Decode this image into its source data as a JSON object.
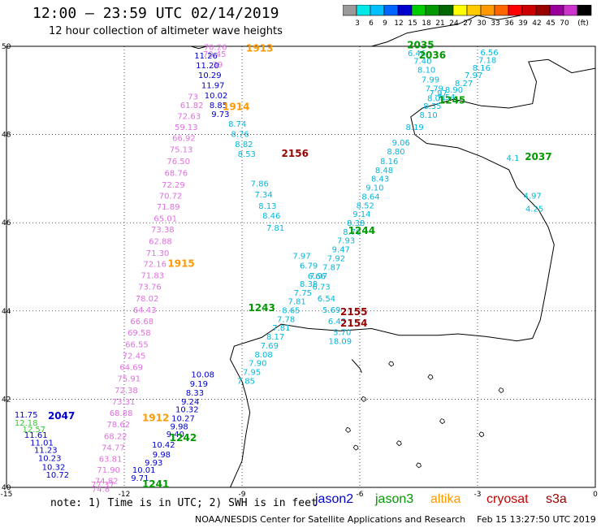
{
  "header": {
    "title": "12:00 – 23:59 UTC 02/14/2019",
    "subtitle": "12 hour collection of altimeter wave heights"
  },
  "colorbar": {
    "unit": "(ft)",
    "ticks": [
      "3",
      "6",
      "9",
      "12",
      "15",
      "18",
      "21",
      "24",
      "27",
      "30",
      "33",
      "36",
      "39",
      "42",
      "45",
      "70"
    ],
    "colors": [
      "#9a9a9a",
      "#00e8e8",
      "#00c0ff",
      "#0066ff",
      "#0000cc",
      "#00cc00",
      "#009900",
      "#006600",
      "#ffff00",
      "#ffcc00",
      "#ff9900",
      "#ff6600",
      "#ff0000",
      "#cc0000",
      "#990000",
      "#990099",
      "#cc33cc",
      "#000000"
    ]
  },
  "footer": {
    "note": "note: 1) Time is in UTC; 2) SWH is in feet",
    "credit": "NOAA/NESDIS Center for Satellite Applications and Research    Feb 15 13:27:50 UTC 2019",
    "legend": [
      {
        "name": "jason2",
        "color": "#0000cc"
      },
      {
        "name": "jason3",
        "color": "#009900"
      },
      {
        "name": "altika",
        "color": "#ff9900"
      },
      {
        "name": "cryosat",
        "color": "#cc0000"
      },
      {
        "name": "s3a",
        "color": "#990000"
      }
    ]
  },
  "chart_data": {
    "type": "scatter",
    "xlim": [
      -15,
      0
    ],
    "ylim": [
      40,
      50
    ],
    "x_ticks": [
      -15,
      -12,
      -9,
      -6,
      -3,
      0
    ],
    "x_tick_labels": [
      "-15",
      "-12",
      "-9",
      "-6",
      "-3",
      "0"
    ],
    "y_ticks": [
      40,
      42,
      44,
      46,
      48,
      50
    ],
    "y_tick_labels": [
      "40",
      "42",
      "44",
      "46",
      "48",
      "50"
    ],
    "grid": true,
    "series": [
      {
        "name": "altika pass 1913/1915",
        "color": "#e070e0",
        "points": [
          {
            "x": -9.68,
            "y": 49.92,
            "v": "70.26"
          },
          {
            "x": -9.7,
            "y": 49.76,
            "v": "70.45"
          },
          {
            "x": -9.62,
            "y": 49.52,
            "v": "39"
          },
          {
            "x": -10.25,
            "y": 48.79,
            "v": "73"
          },
          {
            "x": -10.28,
            "y": 48.6,
            "v": "61.82"
          },
          {
            "x": -10.35,
            "y": 48.35,
            "v": "72.63"
          },
          {
            "x": -10.42,
            "y": 48.1,
            "v": "59.13"
          },
          {
            "x": -10.48,
            "y": 47.85,
            "v": "66.92"
          },
          {
            "x": -10.55,
            "y": 47.6,
            "v": "75.13"
          },
          {
            "x": -10.62,
            "y": 47.33,
            "v": "76.50"
          },
          {
            "x": -10.68,
            "y": 47.06,
            "v": "68.76"
          },
          {
            "x": -10.75,
            "y": 46.8,
            "v": "72.29"
          },
          {
            "x": -10.82,
            "y": 46.55,
            "v": "70.72"
          },
          {
            "x": -10.88,
            "y": 46.3,
            "v": "71.89"
          },
          {
            "x": -10.95,
            "y": 46.03,
            "v": "65.01"
          },
          {
            "x": -11.02,
            "y": 45.78,
            "v": "73.38"
          },
          {
            "x": -11.08,
            "y": 45.52,
            "v": "62.88"
          },
          {
            "x": -11.15,
            "y": 45.25,
            "v": "71.30"
          },
          {
            "x": -11.22,
            "y": 45.0,
            "v": "72.16"
          },
          {
            "x": -11.28,
            "y": 44.74,
            "v": "71.83"
          },
          {
            "x": -11.35,
            "y": 44.48,
            "v": "73.76"
          },
          {
            "x": -11.42,
            "y": 44.22,
            "v": "78.02"
          },
          {
            "x": -11.48,
            "y": 43.96,
            "v": "64.43"
          },
          {
            "x": -11.55,
            "y": 43.7,
            "v": "66.68"
          },
          {
            "x": -11.62,
            "y": 43.44,
            "v": "69.58"
          },
          {
            "x": -11.68,
            "y": 43.18,
            "v": "66.55"
          },
          {
            "x": -11.75,
            "y": 42.92,
            "v": "72.45"
          },
          {
            "x": -11.82,
            "y": 42.66,
            "v": "64.69"
          },
          {
            "x": -11.88,
            "y": 42.4,
            "v": "75.91"
          },
          {
            "x": -11.95,
            "y": 42.14,
            "v": "72.38"
          },
          {
            "x": -12.02,
            "y": 41.88,
            "v": "73.31"
          },
          {
            "x": -12.08,
            "y": 41.62,
            "v": "68.88"
          },
          {
            "x": -12.15,
            "y": 41.36,
            "v": "78.62"
          },
          {
            "x": -12.22,
            "y": 41.1,
            "v": "68.22"
          },
          {
            "x": -12.28,
            "y": 40.84,
            "v": "74.77"
          },
          {
            "x": -12.35,
            "y": 40.58,
            "v": "63.81"
          },
          {
            "x": -12.4,
            "y": 40.33,
            "v": "71.90"
          },
          {
            "x": -12.45,
            "y": 40.08,
            "v": "74.82"
          },
          {
            "x": -12.55,
            "y": 40.0,
            "v": "77.37"
          },
          {
            "x": -12.6,
            "y": 39.9,
            "v": "74.8"
          }
        ]
      },
      {
        "name": "jason2 pass 2047",
        "color": "#0000cc",
        "points": [
          {
            "x": -9.92,
            "y": 49.72,
            "v": "11.26"
          },
          {
            "x": -9.88,
            "y": 49.5,
            "v": "11.20"
          },
          {
            "x": -9.82,
            "y": 49.28,
            "v": "10.29"
          },
          {
            "x": -9.74,
            "y": 49.05,
            "v": "11.97"
          },
          {
            "x": -9.66,
            "y": 48.82,
            "v": "10.02"
          },
          {
            "x": -9.6,
            "y": 48.6,
            "v": "8.85"
          },
          {
            "x": -9.55,
            "y": 48.4,
            "v": "9.73"
          },
          {
            "x": -14.5,
            "y": 41.58,
            "v": "11.75"
          },
          {
            "x": -14.25,
            "y": 41.12,
            "v": "11.61"
          },
          {
            "x": -14.1,
            "y": 40.95,
            "v": "11.01"
          },
          {
            "x": -14.0,
            "y": 40.78,
            "v": "11.23"
          },
          {
            "x": -13.9,
            "y": 40.6,
            "v": "10.23"
          },
          {
            "x": -13.8,
            "y": 40.4,
            "v": "10.32"
          },
          {
            "x": -13.7,
            "y": 40.22,
            "v": "10.72"
          },
          {
            "x": -11.25,
            "y": 40.5,
            "v": "9.93"
          },
          {
            "x": -11.5,
            "y": 40.33,
            "v": "10.01"
          },
          {
            "x": -11.6,
            "y": 40.15,
            "v": "9.71"
          },
          {
            "x": -11.05,
            "y": 40.68,
            "v": "9.98"
          },
          {
            "x": -11.0,
            "y": 40.9,
            "v": "10.42"
          },
          {
            "x": -10.7,
            "y": 41.14,
            "v": "9.40"
          },
          {
            "x": -10.6,
            "y": 41.32,
            "v": "9.98"
          },
          {
            "x": -10.5,
            "y": 41.5,
            "v": "10.27"
          },
          {
            "x": -10.4,
            "y": 41.7,
            "v": "10.32"
          },
          {
            "x": -10.32,
            "y": 41.88,
            "v": "9.24"
          },
          {
            "x": -10.2,
            "y": 42.08,
            "v": "8.33"
          },
          {
            "x": -10.1,
            "y": 42.28,
            "v": "9.19"
          },
          {
            "x": -10.0,
            "y": 42.5,
            "v": "10.08"
          }
        ]
      },
      {
        "name": "jason3 pass 1244/1245",
        "color": "#00b8e0",
        "points": [
          {
            "x": -4.55,
            "y": 49.78,
            "v": "6.46"
          },
          {
            "x": -4.4,
            "y": 49.6,
            "v": "7.40"
          },
          {
            "x": -4.3,
            "y": 49.4,
            "v": "8.10"
          },
          {
            "x": -4.2,
            "y": 49.18,
            "v": "7.99"
          },
          {
            "x": -4.1,
            "y": 48.98,
            "v": "7.79"
          },
          {
            "x": -4.0,
            "y": 48.88,
            "v": "7.97"
          },
          {
            "x": -4.05,
            "y": 48.76,
            "v": "8.08"
          },
          {
            "x": -4.15,
            "y": 48.58,
            "v": "8.35"
          },
          {
            "x": -4.25,
            "y": 48.38,
            "v": "8.10"
          },
          {
            "x": -4.6,
            "y": 48.1,
            "v": "8.19"
          },
          {
            "x": -4.95,
            "y": 47.75,
            "v": "9.06"
          },
          {
            "x": -5.08,
            "y": 47.55,
            "v": "8.80"
          },
          {
            "x": -5.25,
            "y": 47.33,
            "v": "8.16"
          },
          {
            "x": -5.38,
            "y": 47.13,
            "v": "8.48"
          },
          {
            "x": -5.48,
            "y": 46.93,
            "v": "8.43"
          },
          {
            "x": -5.62,
            "y": 46.73,
            "v": "9.10"
          },
          {
            "x": -5.72,
            "y": 46.53,
            "v": "8.64"
          },
          {
            "x": -5.86,
            "y": 46.33,
            "v": "8.52"
          },
          {
            "x": -5.95,
            "y": 46.13,
            "v": "9.14"
          },
          {
            "x": -6.1,
            "y": 45.93,
            "v": "8.38"
          },
          {
            "x": -6.2,
            "y": 45.73,
            "v": "8.70"
          },
          {
            "x": -6.35,
            "y": 45.53,
            "v": "7.93"
          },
          {
            "x": -6.48,
            "y": 45.33,
            "v": "9.47"
          },
          {
            "x": -6.6,
            "y": 45.13,
            "v": "7.92"
          },
          {
            "x": -6.72,
            "y": 44.93,
            "v": "7.87"
          },
          {
            "x": -7.05,
            "y": 44.73,
            "v": "7.97"
          },
          {
            "x": -7.3,
            "y": 44.55,
            "v": "8.38"
          },
          {
            "x": -7.45,
            "y": 44.35,
            "v": "7.75"
          },
          {
            "x": -7.6,
            "y": 44.15,
            "v": "7.81"
          },
          {
            "x": -7.75,
            "y": 43.95,
            "v": "8.65"
          },
          {
            "x": -7.88,
            "y": 43.75,
            "v": "7.78"
          },
          {
            "x": -8.0,
            "y": 43.55,
            "v": "7.81"
          },
          {
            "x": -8.15,
            "y": 43.35,
            "v": "8.17"
          },
          {
            "x": -8.3,
            "y": 43.15,
            "v": "7.69"
          },
          {
            "x": -8.45,
            "y": 42.95,
            "v": "8.08"
          },
          {
            "x": -8.6,
            "y": 42.75,
            "v": "7.90"
          },
          {
            "x": -8.75,
            "y": 42.55,
            "v": "7.95"
          },
          {
            "x": -8.9,
            "y": 42.35,
            "v": "7.85"
          },
          {
            "x": -2.7,
            "y": 49.8,
            "v": "6.56"
          },
          {
            "x": -2.75,
            "y": 49.62,
            "v": "7.18"
          },
          {
            "x": -2.9,
            "y": 49.45,
            "v": "8.16"
          },
          {
            "x": -3.1,
            "y": 49.28,
            "v": "7.97"
          },
          {
            "x": -3.35,
            "y": 49.1,
            "v": "8.27"
          },
          {
            "x": -3.6,
            "y": 48.95,
            "v": "8.90"
          },
          {
            "x": -3.8,
            "y": 48.78,
            "v": "7.54"
          },
          {
            "x": -1.6,
            "y": 46.55,
            "v": "4.97"
          },
          {
            "x": -1.55,
            "y": 46.25,
            "v": "4.25"
          },
          {
            "x": -2.1,
            "y": 47.4,
            "v": "4.1"
          }
        ]
      },
      {
        "name": "jason2 pass 2156 descending",
        "color": "#00b8e0",
        "points": [
          {
            "x": -9.12,
            "y": 48.18,
            "v": "8.74"
          },
          {
            "x": -9.05,
            "y": 47.95,
            "v": "8.76"
          },
          {
            "x": -8.95,
            "y": 47.72,
            "v": "8.82"
          },
          {
            "x": -8.88,
            "y": 47.5,
            "v": "8.53"
          },
          {
            "x": -8.55,
            "y": 46.82,
            "v": "7.86"
          },
          {
            "x": -8.45,
            "y": 46.57,
            "v": "7.34"
          },
          {
            "x": -8.35,
            "y": 46.32,
            "v": "8.13"
          },
          {
            "x": -8.25,
            "y": 46.1,
            "v": "8.46"
          },
          {
            "x": -8.15,
            "y": 45.82,
            "v": "7.81"
          },
          {
            "x": -7.48,
            "y": 45.18,
            "v": "7.97"
          },
          {
            "x": -7.3,
            "y": 44.96,
            "v": "6.79"
          },
          {
            "x": -7.1,
            "y": 44.72,
            "v": "6.66"
          },
          {
            "x": -6.98,
            "y": 44.48,
            "v": "6.73"
          },
          {
            "x": -6.85,
            "y": 44.22,
            "v": "6.54"
          },
          {
            "x": -6.72,
            "y": 43.96,
            "v": "5.69"
          },
          {
            "x": -6.58,
            "y": 43.7,
            "v": "6.43"
          },
          {
            "x": -6.45,
            "y": 43.45,
            "v": "5.70"
          },
          {
            "x": -6.5,
            "y": 43.25,
            "v": "18.09"
          }
        ]
      }
    ],
    "pass_labels": [
      {
        "text": "1913",
        "x": -8.55,
        "y": 49.88,
        "color": "#ff9900"
      },
      {
        "text": "1914",
        "x": -9.15,
        "y": 48.55,
        "color": "#ff9900"
      },
      {
        "text": "2156",
        "x": -7.65,
        "y": 47.5,
        "color": "#990000"
      },
      {
        "text": "1244",
        "x": -5.95,
        "y": 45.75,
        "color": "#009900"
      },
      {
        "text": "1915",
        "x": -10.55,
        "y": 45.0,
        "color": "#ff9900"
      },
      {
        "text": "1243",
        "x": -8.5,
        "y": 44.0,
        "color": "#009900"
      },
      {
        "text": "2155",
        "x": -6.15,
        "y": 43.9,
        "color": "#990000"
      },
      {
        "text": "2154",
        "x": -6.15,
        "y": 43.65,
        "color": "#990000"
      },
      {
        "text": "2035",
        "x": -4.45,
        "y": 49.95,
        "color": "#009900"
      },
      {
        "text": "2036",
        "x": -4.15,
        "y": 49.72,
        "color": "#009900"
      },
      {
        "text": "1245",
        "x": -3.65,
        "y": 48.7,
        "color": "#009900"
      },
      {
        "text": "2037",
        "x": -1.45,
        "y": 47.42,
        "color": "#009900"
      },
      {
        "text": "2047",
        "x": -13.6,
        "y": 41.55,
        "color": "#0000cc"
      },
      {
        "text": "1912",
        "x": -11.2,
        "y": 41.5,
        "color": "#ff9900"
      },
      {
        "text": "1242",
        "x": -10.5,
        "y": 41.05,
        "color": "#009900"
      },
      {
        "text": "1241",
        "x": -11.2,
        "y": 40.0,
        "color": "#009900"
      }
    ],
    "green_points": [
      {
        "x": -14.5,
        "y": 41.4,
        "v": "12.18"
      },
      {
        "x": -14.3,
        "y": 41.25,
        "v": "12.57"
      }
    ]
  }
}
